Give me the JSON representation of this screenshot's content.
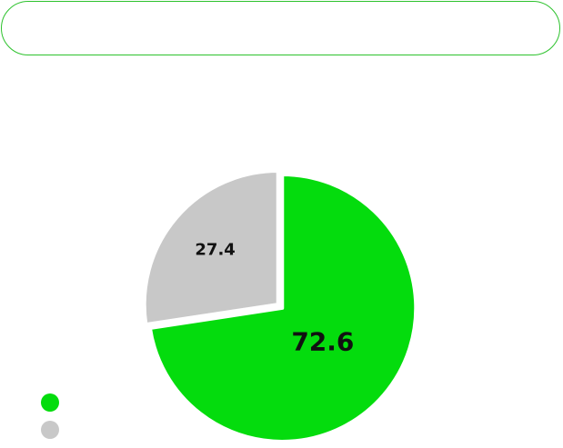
{
  "header": {
    "title": ""
  },
  "chart_data": {
    "type": "pie",
    "title": "",
    "start_angle_deg": 0,
    "direction": "clockwise",
    "series": [
      {
        "values": [
          72.6,
          27.4
        ],
        "labels": [
          "72.6",
          "27.4"
        ],
        "colors": [
          "#04dc0d",
          "#c8c8c8"
        ]
      }
    ],
    "legend": {
      "placement": "bottom-left",
      "entries": [
        {
          "text": "",
          "color": "#04dc0d"
        },
        {
          "text": "",
          "color": "#c8c8c8"
        }
      ]
    }
  }
}
